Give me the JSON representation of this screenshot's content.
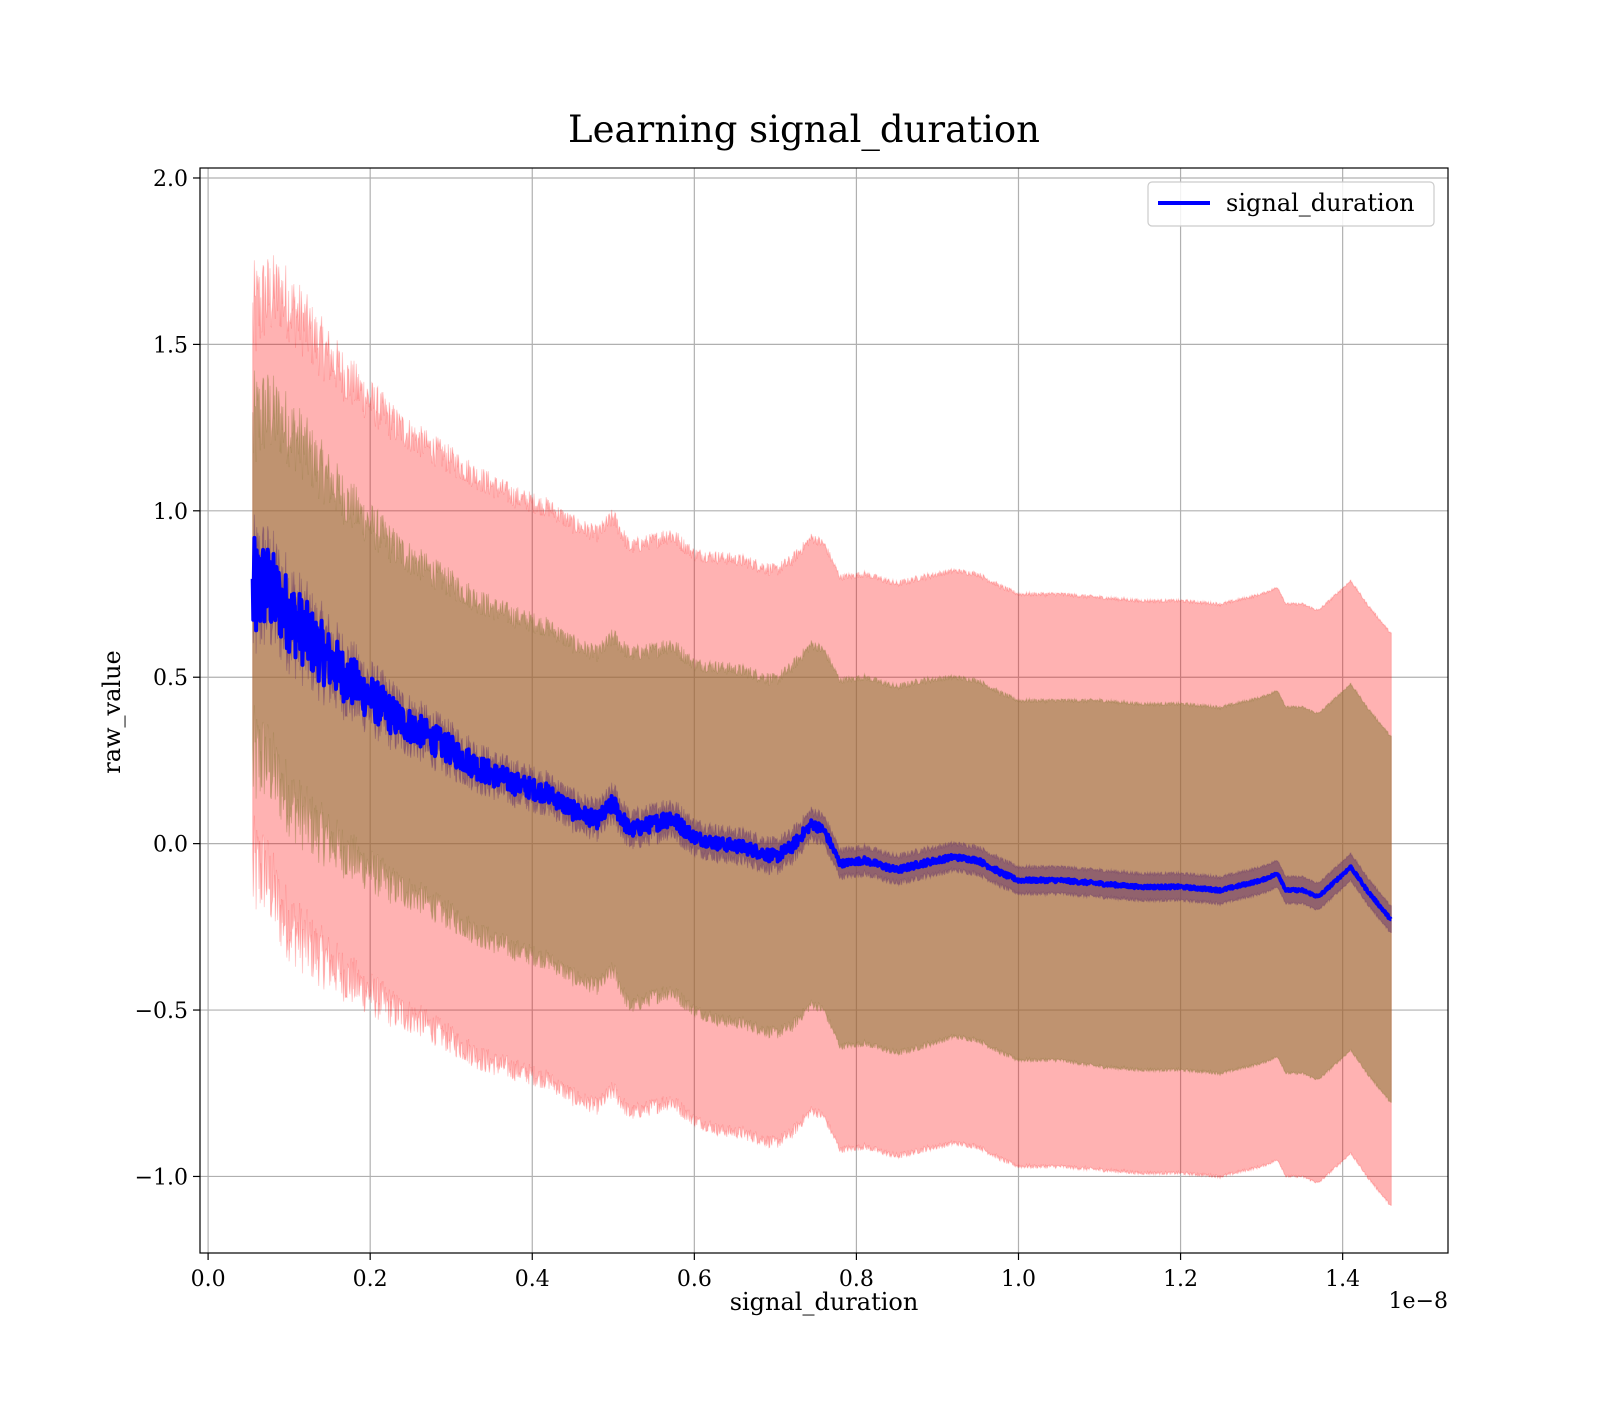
{
  "chart_data": {
    "type": "line",
    "title": "Learning signal_duration",
    "xlabel": "signal_duration",
    "ylabel": "raw_value",
    "x_offset_text": "1e−8",
    "xlim": [
      -0.01,
      1.53
    ],
    "ylim": [
      -1.23,
      2.03
    ],
    "x_ticks": [
      0.0,
      0.2,
      0.4,
      0.6,
      0.8,
      1.0,
      1.2,
      1.4
    ],
    "x_tick_labels": [
      "0.0",
      "0.2",
      "0.4",
      "0.6",
      "0.8",
      "1.0",
      "1.2",
      "1.4"
    ],
    "y_ticks": [
      -1.0,
      -0.5,
      0.0,
      0.5,
      1.0,
      1.5,
      2.0
    ],
    "y_tick_labels": [
      "−1.0",
      "−0.5",
      "0.0",
      "0.5",
      "1.0",
      "1.5",
      "2.0"
    ],
    "grid": true,
    "legend_position": "top-right",
    "colors": {
      "line": "#0000ff",
      "outer_band": "#ff0000",
      "middle_band": "#8b7a3a",
      "inner_band": "#6b3a6b"
    },
    "series": [
      {
        "name": "signal_duration",
        "x": [
          0.055,
          0.07,
          0.09,
          0.11,
          0.13,
          0.15,
          0.17,
          0.2,
          0.23,
          0.26,
          0.3,
          0.34,
          0.38,
          0.42,
          0.45,
          0.48,
          0.5,
          0.52,
          0.55,
          0.57,
          0.6,
          0.63,
          0.66,
          0.7,
          0.72,
          0.745,
          0.76,
          0.78,
          0.81,
          0.85,
          0.88,
          0.92,
          0.95,
          0.98,
          1.0,
          1.05,
          1.1,
          1.15,
          1.2,
          1.25,
          1.3,
          1.32,
          1.33,
          1.35,
          1.37,
          1.41,
          1.43,
          1.46
        ],
        "y": [
          0.74,
          0.78,
          0.72,
          0.66,
          0.6,
          0.55,
          0.5,
          0.44,
          0.38,
          0.34,
          0.28,
          0.22,
          0.18,
          0.15,
          0.1,
          0.07,
          0.12,
          0.04,
          0.06,
          0.08,
          0.02,
          0.0,
          -0.01,
          -0.04,
          -0.01,
          0.06,
          0.04,
          -0.06,
          -0.05,
          -0.08,
          -0.06,
          -0.04,
          -0.05,
          -0.09,
          -0.11,
          -0.11,
          -0.12,
          -0.13,
          -0.13,
          -0.14,
          -0.11,
          -0.09,
          -0.14,
          -0.14,
          -0.16,
          -0.07,
          -0.14,
          -0.23
        ],
        "noise": [
          0.18,
          0.14,
          0.12,
          0.11,
          0.1,
          0.09,
          0.08,
          0.07,
          0.06,
          0.05,
          0.045,
          0.04,
          0.035,
          0.03,
          0.03,
          0.025,
          0.03,
          0.025,
          0.025,
          0.03,
          0.02,
          0.02,
          0.02,
          0.02,
          0.02,
          0.015,
          0.015,
          0.01,
          0.01,
          0.01,
          0.01,
          0.008,
          0.008,
          0.008,
          0.006,
          0.006,
          0.006,
          0.005,
          0.005,
          0.005,
          0.004,
          0.004,
          0.004,
          0.004,
          0.004,
          0.004,
          0.004,
          0.004
        ],
        "inner_halfwidth": [
          0.07,
          0.07,
          0.07,
          0.065,
          0.06,
          0.06,
          0.055,
          0.05,
          0.05,
          0.045,
          0.045,
          0.04,
          0.04,
          0.04,
          0.04,
          0.04,
          0.04,
          0.04,
          0.04,
          0.04,
          0.04,
          0.04,
          0.04,
          0.04,
          0.04,
          0.04,
          0.04,
          0.04,
          0.04,
          0.04,
          0.04,
          0.04,
          0.04,
          0.04,
          0.04,
          0.04,
          0.04,
          0.04,
          0.04,
          0.04,
          0.04,
          0.04,
          0.04,
          0.04,
          0.04,
          0.04,
          0.04,
          0.04
        ],
        "middle_halfwidth": [
          0.5,
          0.52,
          0.55,
          0.56,
          0.55,
          0.54,
          0.53,
          0.52,
          0.51,
          0.5,
          0.5,
          0.5,
          0.5,
          0.5,
          0.5,
          0.5,
          0.5,
          0.53,
          0.52,
          0.52,
          0.52,
          0.53,
          0.53,
          0.53,
          0.54,
          0.54,
          0.54,
          0.55,
          0.55,
          0.55,
          0.55,
          0.54,
          0.54,
          0.54,
          0.54,
          0.54,
          0.55,
          0.55,
          0.55,
          0.55,
          0.55,
          0.55,
          0.55,
          0.55,
          0.55,
          0.55,
          0.55,
          0.55
        ],
        "outer_halfwidth": [
          0.83,
          0.86,
          0.93,
          0.93,
          0.92,
          0.91,
          0.9,
          0.89,
          0.88,
          0.87,
          0.87,
          0.87,
          0.86,
          0.86,
          0.86,
          0.86,
          0.86,
          0.85,
          0.85,
          0.85,
          0.85,
          0.86,
          0.86,
          0.86,
          0.86,
          0.86,
          0.86,
          0.86,
          0.86,
          0.86,
          0.86,
          0.86,
          0.86,
          0.86,
          0.86,
          0.86,
          0.86,
          0.86,
          0.86,
          0.86,
          0.86,
          0.86,
          0.86,
          0.86,
          0.86,
          0.86,
          0.86,
          0.86
        ]
      }
    ]
  }
}
